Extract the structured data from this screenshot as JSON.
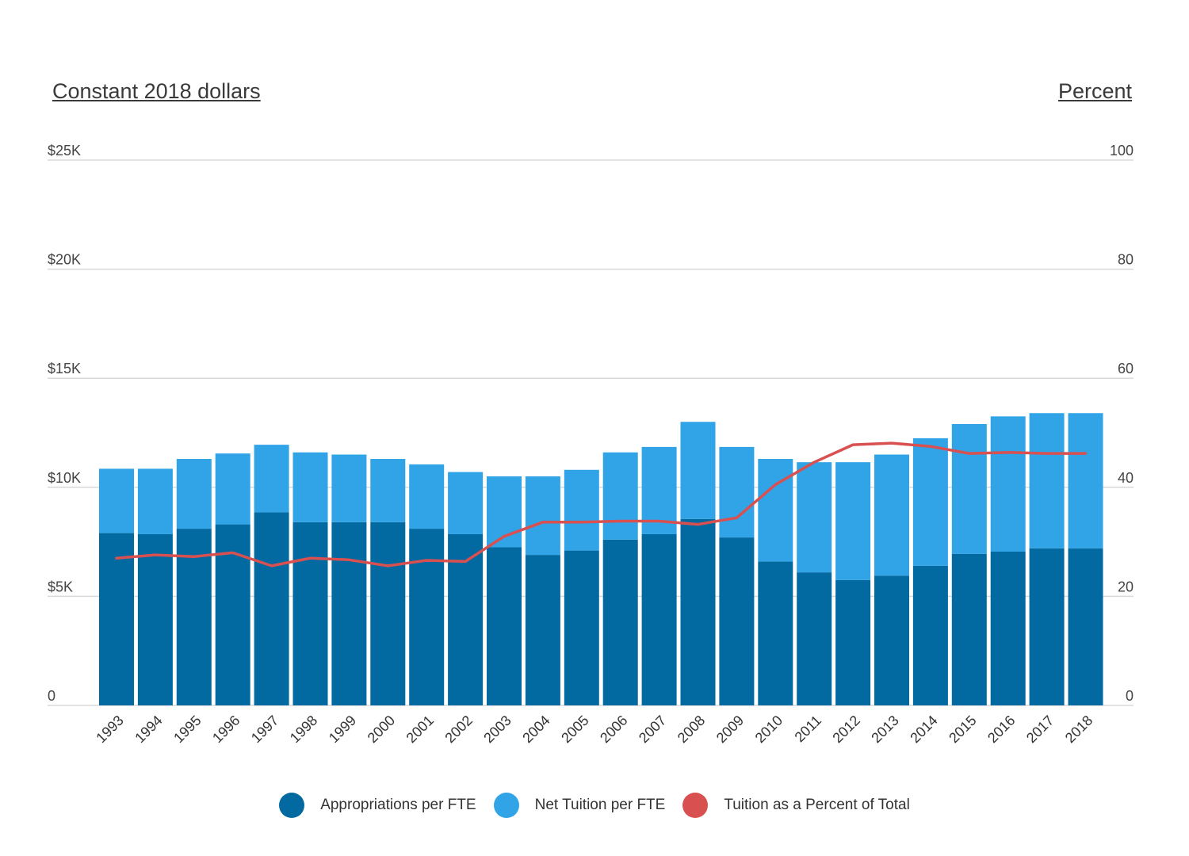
{
  "chart_data": {
    "type": "bar",
    "stacked": true,
    "left_axis_title": "Constant 2018 dollars",
    "right_axis_title": "Percent",
    "categories": [
      "1993",
      "1994",
      "1995",
      "1996",
      "1997",
      "1998",
      "1999",
      "2000",
      "2001",
      "2002",
      "2003",
      "2004",
      "2005",
      "2006",
      "2007",
      "2008",
      "2009",
      "2010",
      "2011",
      "2012",
      "2013",
      "2014",
      "2015",
      "2016",
      "2017",
      "2018"
    ],
    "series": [
      {
        "name": "Appropriations per FTE",
        "type": "bar",
        "axis": "left",
        "color": "#0269a1",
        "values": [
          7900,
          7850,
          8100,
          8300,
          8850,
          8400,
          8400,
          8400,
          8100,
          7850,
          7250,
          6900,
          7100,
          7600,
          7850,
          8550,
          7700,
          6600,
          6100,
          5750,
          5950,
          6400,
          6950,
          7050,
          7200,
          7200
        ]
      },
      {
        "name": "Net Tuition per FTE",
        "type": "bar",
        "axis": "left",
        "color": "#30a4e6",
        "values": [
          2950,
          3000,
          3200,
          3250,
          3100,
          3200,
          3100,
          2900,
          2950,
          2850,
          3250,
          3600,
          3700,
          4000,
          4000,
          4450,
          4150,
          4700,
          5050,
          5400,
          5550,
          5850,
          5950,
          6200,
          6200,
          6200
        ]
      },
      {
        "name": "Tuition as a Percent of Total",
        "type": "line",
        "axis": "right",
        "color": "#d95051",
        "values": [
          27.0,
          27.6,
          27.3,
          28.0,
          25.6,
          27.0,
          26.7,
          25.6,
          26.6,
          26.4,
          31.0,
          33.6,
          33.6,
          33.8,
          33.8,
          33.2,
          34.4,
          40.5,
          44.6,
          47.8,
          48.1,
          47.5,
          46.2,
          46.4,
          46.2,
          46.2
        ]
      }
    ],
    "left_axis": {
      "min": 0,
      "max": 25000,
      "ticks": [
        0,
        5000,
        10000,
        15000,
        20000,
        25000
      ],
      "tick_labels": [
        "0",
        "$5K",
        "$10K",
        "$15K",
        "$20K",
        "$25K"
      ]
    },
    "right_axis": {
      "min": 0,
      "max": 100,
      "ticks": [
        0,
        20,
        40,
        60,
        80,
        100
      ],
      "tick_labels": [
        "0",
        "20",
        "40",
        "60",
        "80",
        "100"
      ]
    },
    "grid": true,
    "legend_position": "bottom"
  }
}
